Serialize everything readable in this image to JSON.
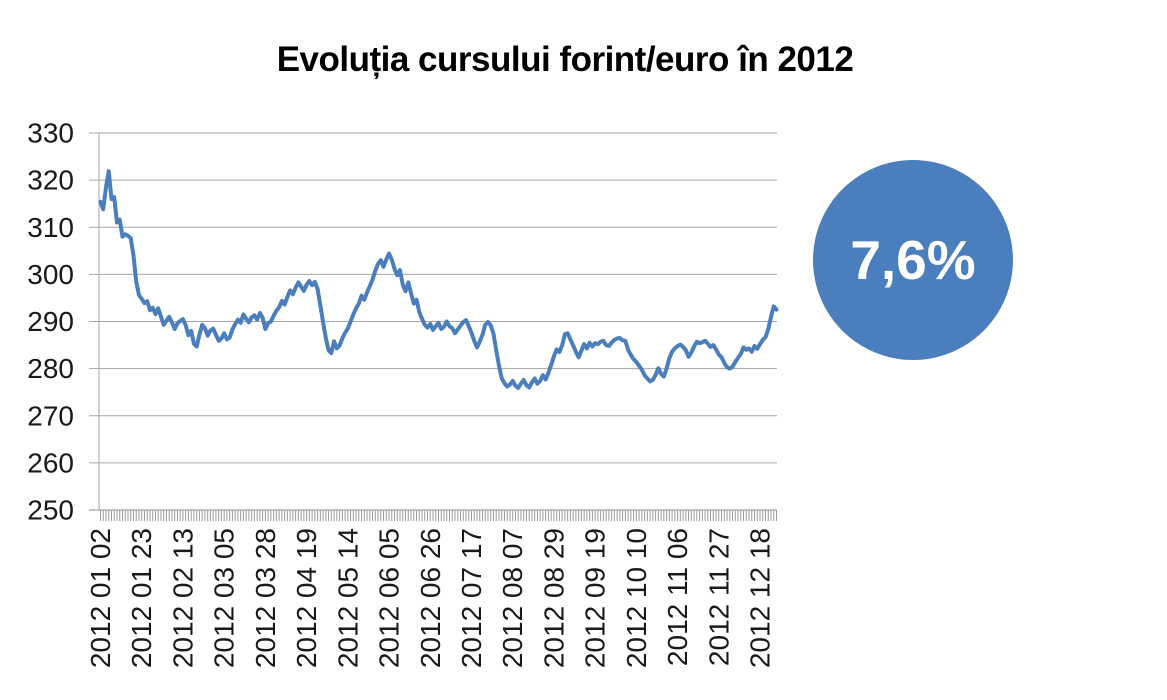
{
  "title": "Evoluția cursului forint/euro în 2012",
  "badge": {
    "label": "7,6%",
    "color": "#4a7ebc",
    "text_color": "#ffffff"
  },
  "chart_data": {
    "type": "line",
    "title": "Evoluția cursului forint/euro în 2012",
    "xlabel": "",
    "ylabel": "",
    "ylim": [
      250,
      330
    ],
    "y_tick_step": 10,
    "y_ticks": [
      250,
      260,
      270,
      280,
      290,
      300,
      310,
      320,
      330
    ],
    "grid": true,
    "legend": "none",
    "line_color": "#4a7ebc",
    "grid_color": "#a6a6a6",
    "label_every": 15,
    "x_tick_labels": [
      "2012 01 02",
      "2012 01 23",
      "2012 02 13",
      "2012 03 05",
      "2012 03 28",
      "2012 04 19",
      "2012 05 14",
      "2012 06 05",
      "2012 06 26",
      "2012 07 17",
      "2012 08 07",
      "2012 08 29",
      "2012 09 19",
      "2012 10 10",
      "2012 11 06",
      "2012 11 27",
      "2012 12 18"
    ],
    "values": [
      315.4,
      313.8,
      318.5,
      321.9,
      316.0,
      316.4,
      311.0,
      311.6,
      308.0,
      308.5,
      308.2,
      307.7,
      304.0,
      298.5,
      295.6,
      294.8,
      293.9,
      294.3,
      292.4,
      292.9,
      291.6,
      292.8,
      291.0,
      289.3,
      290.2,
      291.0,
      289.8,
      288.4,
      289.6,
      290.1,
      290.5,
      289.2,
      287.1,
      288.0,
      285.3,
      284.7,
      287.2,
      289.3,
      288.6,
      287.0,
      288.1,
      288.5,
      287.2,
      285.9,
      286.4,
      287.5,
      286.2,
      286.6,
      288.3,
      289.5,
      290.4,
      289.7,
      291.5,
      290.6,
      289.8,
      290.9,
      291.3,
      290.4,
      291.8,
      290.8,
      288.4,
      289.6,
      290.0,
      291.2,
      292.3,
      293.0,
      294.4,
      293.6,
      295.2,
      296.6,
      295.8,
      297.2,
      298.3,
      297.4,
      296.5,
      297.8,
      298.6,
      297.7,
      298.4,
      296.9,
      293.5,
      289.8,
      286.5,
      283.9,
      283.3,
      285.8,
      284.3,
      284.9,
      286.4,
      287.6,
      288.5,
      290.0,
      291.5,
      292.8,
      293.8,
      295.5,
      294.6,
      296.2,
      297.5,
      298.9,
      300.8,
      302.2,
      303.0,
      301.6,
      303.2,
      304.4,
      303.1,
      301.2,
      299.8,
      300.9,
      297.8,
      296.4,
      298.3,
      296.0,
      293.8,
      294.6,
      292.0,
      290.6,
      289.3,
      288.7,
      289.5,
      288.2,
      289.0,
      289.7,
      288.4,
      288.9,
      290.0,
      289.0,
      288.6,
      287.5,
      288.3,
      289.1,
      289.9,
      290.3,
      289.0,
      287.6,
      285.9,
      284.5,
      285.7,
      287.2,
      289.3,
      289.9,
      289.2,
      287.4,
      283.9,
      280.6,
      278.0,
      276.9,
      276.2,
      276.6,
      277.4,
      276.4,
      275.9,
      276.8,
      277.6,
      276.5,
      276.0,
      277.1,
      277.9,
      276.8,
      277.4,
      278.6,
      277.7,
      279.1,
      280.8,
      282.6,
      284.1,
      283.5,
      285.0,
      287.3,
      287.5,
      286.2,
      284.9,
      283.6,
      282.4,
      283.8,
      285.2,
      284.3,
      285.5,
      284.7,
      285.4,
      285.2,
      285.7,
      285.9,
      285.0,
      284.8,
      285.5,
      286.1,
      286.4,
      286.5,
      286.0,
      285.9,
      284.0,
      282.9,
      282.0,
      281.4,
      280.6,
      279.8,
      278.6,
      277.9,
      277.3,
      277.6,
      278.7,
      280.1,
      278.9,
      278.3,
      280.0,
      282.2,
      283.6,
      284.3,
      284.8,
      285.1,
      284.6,
      283.9,
      282.5,
      283.4,
      284.7,
      285.7,
      285.4,
      285.6,
      285.9,
      285.3,
      284.6,
      285.0,
      284.1,
      283.0,
      282.4,
      281.2,
      280.3,
      280.0,
      280.4,
      281.4,
      282.3,
      283.1,
      284.5,
      284.0,
      284.3,
      283.6,
      284.8,
      284.2,
      285.2,
      286.1,
      286.7,
      288.4,
      291.0,
      293.2,
      292.5
    ]
  }
}
